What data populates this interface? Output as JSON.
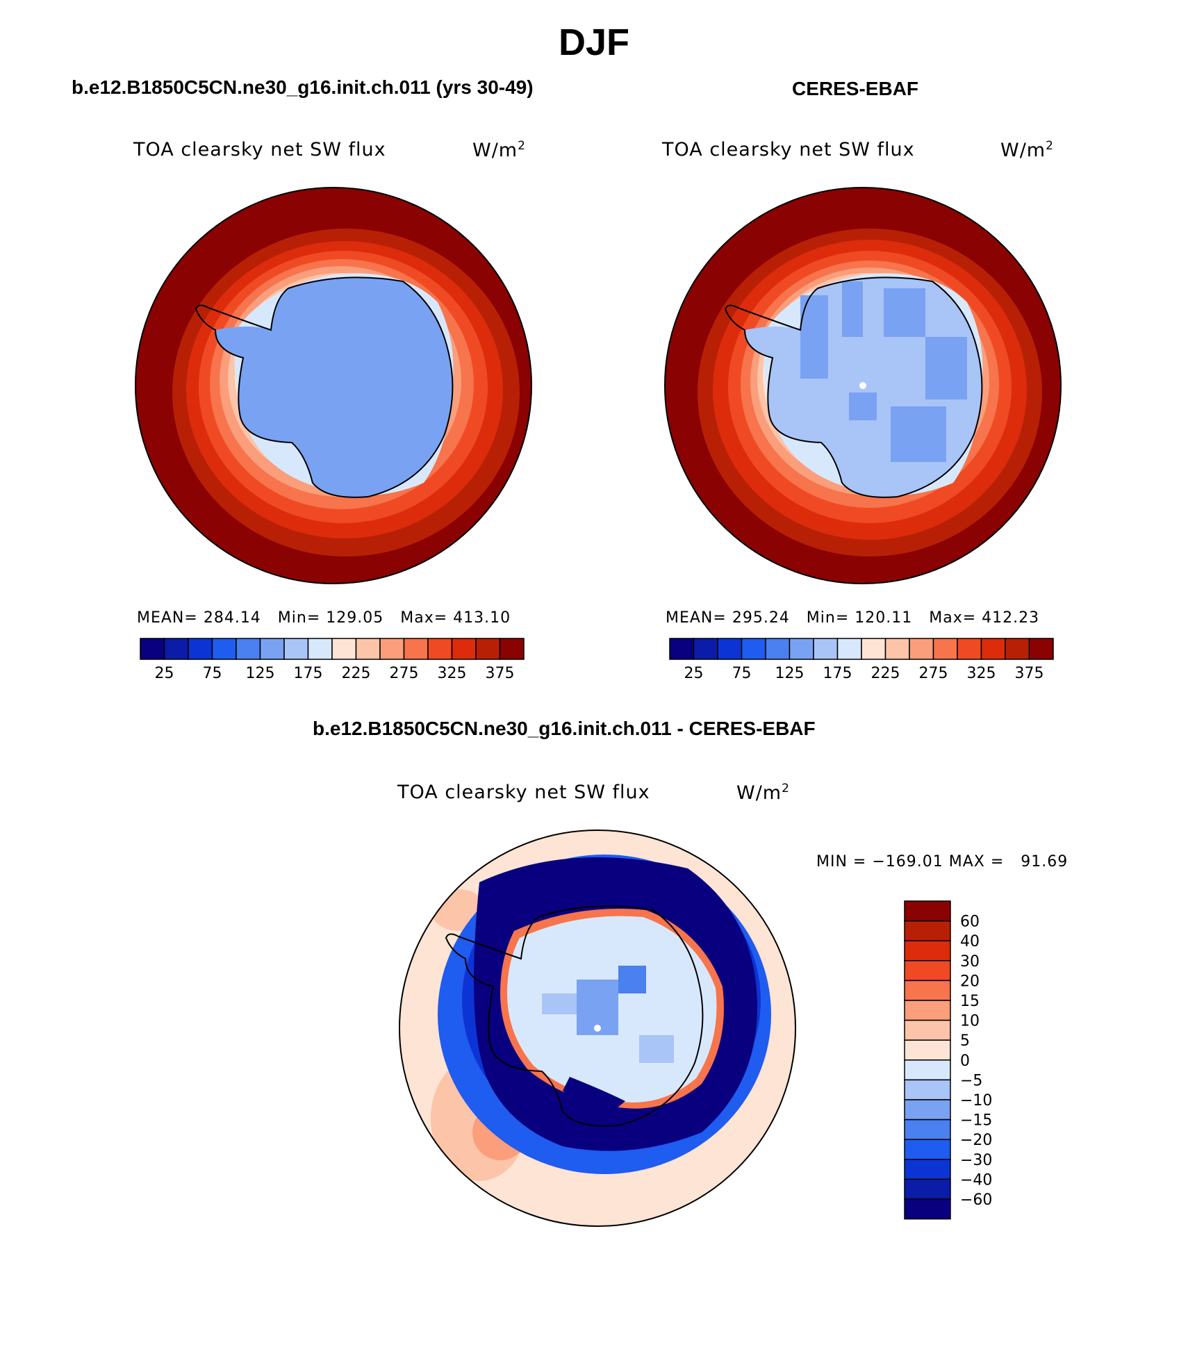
{
  "season": "DJF",
  "colors": {
    "abs_levels": [
      "#08007f",
      "#0a1ca8",
      "#0c34d4",
      "#1f5cf0",
      "#4a80f0",
      "#7aa2f2",
      "#a9c4f6",
      "#d8e8fc",
      "#fde4d4",
      "#fcc4a8",
      "#fa9e7c",
      "#f7744c",
      "#f04a24",
      "#dc2c0c",
      "#b82006",
      "#8a0202"
    ],
    "diff_levels": [
      "#08007f",
      "#0a1ca8",
      "#0c34d4",
      "#1f5cf0",
      "#4a80f0",
      "#7aa2f2",
      "#a9c4f6",
      "#d8e8fc",
      "#fde4d4",
      "#fcc4a8",
      "#fa9e7c",
      "#f7744c",
      "#f04a24",
      "#dc2c0c",
      "#b82006",
      "#8a0202"
    ]
  },
  "panels": [
    {
      "title": "b.e12.B1850C5CN.ne30_g16.init.ch.011 (yrs 30-49)",
      "field": "TOA clearsky net SW flux",
      "units_base": "W/m",
      "units_exp": "2",
      "mean_label": "MEAN=",
      "mean": "284.14",
      "min_label": "Min=",
      "min": "129.05",
      "max_label": "Max=",
      "max": "413.10",
      "colorbar_labels": [
        "25",
        "75",
        "125",
        "175",
        "225",
        "275",
        "325",
        "375"
      ]
    },
    {
      "title": "CERES-EBAF",
      "field": "TOA clearsky net SW flux",
      "units_base": "W/m",
      "units_exp": "2",
      "mean_label": "MEAN=",
      "mean": "295.24",
      "min_label": "Min=",
      "min": "120.11",
      "max_label": "Max=",
      "max": "412.23",
      "colorbar_labels": [
        "25",
        "75",
        "125",
        "175",
        "225",
        "275",
        "325",
        "375"
      ]
    }
  ],
  "diff": {
    "title": "b.e12.B1850C5CN.ne30_g16.init.ch.011 - CERES-EBAF",
    "field": "TOA clearsky net SW flux",
    "units_base": "W/m",
    "units_exp": "2",
    "minmax": "MIN = −169.01 MAX =   91.69",
    "colorbar_labels": [
      "60",
      "40",
      "30",
      "20",
      "15",
      "10",
      "5",
      "0",
      "−5",
      "−10",
      "−15",
      "−20",
      "−30",
      "−40",
      "−60"
    ]
  }
}
